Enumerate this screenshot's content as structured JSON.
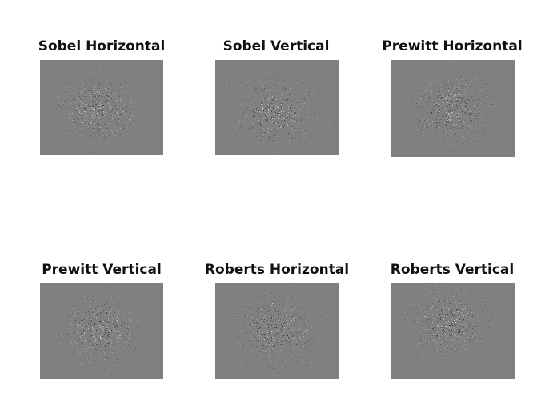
{
  "panels": [
    {
      "title": "Sobel Horizontal",
      "icon": "edge-map-noise"
    },
    {
      "title": "Sobel Vertical",
      "icon": "edge-map-noise"
    },
    {
      "title": "Prewitt Horizontal",
      "icon": "edge-map-noise"
    },
    {
      "title": "Prewitt Vertical",
      "icon": "edge-map-noise"
    },
    {
      "title": "Roberts Horizontal",
      "icon": "edge-map-noise"
    },
    {
      "title": "Roberts Vertical",
      "icon": "edge-map-noise"
    }
  ],
  "colors": {
    "background": "#ffffff",
    "image_gray": "#808080",
    "speckle_dark": "#3a3a3a",
    "speckle_light": "#d0d0d0",
    "title_text": "#111111"
  }
}
